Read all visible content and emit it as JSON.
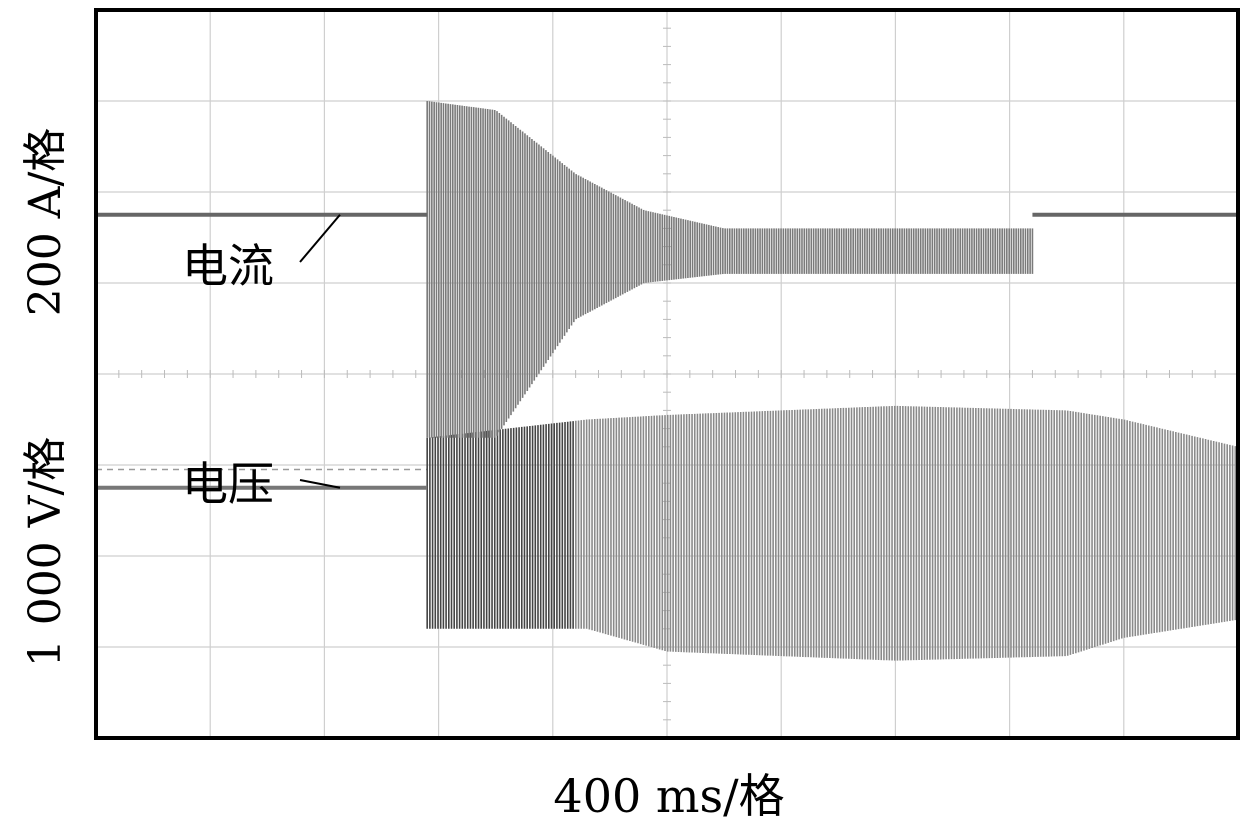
{
  "chart_data": {
    "type": "line",
    "xlabel": "400 ms/格",
    "ylabel_current": "200 A/格",
    "ylabel_voltage": "1 000 V/格",
    "x_divisions": 10,
    "y_divisions": 8,
    "grid": true,
    "series": [
      {
        "name": "电流",
        "unit_per_div": "200 A",
        "baseline_div": 5.75,
        "oscillation_start_div": 2.9,
        "oscillation_end_div": 8.2,
        "envelope": [
          {
            "x": 2.9,
            "upper_div": 7.0,
            "lower_div": 3.3
          },
          {
            "x": 3.5,
            "upper_div": 6.9,
            "lower_div": 3.3
          },
          {
            "x": 4.2,
            "upper_div": 6.2,
            "lower_div": 4.6
          },
          {
            "x": 4.8,
            "upper_div": 5.8,
            "lower_div": 5.0
          },
          {
            "x": 5.5,
            "upper_div": 5.6,
            "lower_div": 5.1
          },
          {
            "x": 8.2,
            "upper_div": 5.6,
            "lower_div": 5.1
          }
        ]
      },
      {
        "name": "电压",
        "unit_per_div": "1 000 V",
        "baseline_div": 2.75,
        "oscillation_start_div": 2.9,
        "envelope": [
          {
            "x": 2.9,
            "upper_div": 3.3,
            "lower_div": 1.2
          },
          {
            "x": 4.3,
            "upper_div": 3.5,
            "lower_div": 1.2
          },
          {
            "x": 5.0,
            "upper_div": 3.55,
            "lower_div": 0.95
          },
          {
            "x": 7.0,
            "upper_div": 3.65,
            "lower_div": 0.85
          },
          {
            "x": 8.5,
            "upper_div": 3.6,
            "lower_div": 0.9
          },
          {
            "x": 9.0,
            "upper_div": 3.5,
            "lower_div": 1.1
          },
          {
            "x": 10.0,
            "upper_div": 3.2,
            "lower_div": 1.3
          }
        ]
      }
    ]
  }
}
